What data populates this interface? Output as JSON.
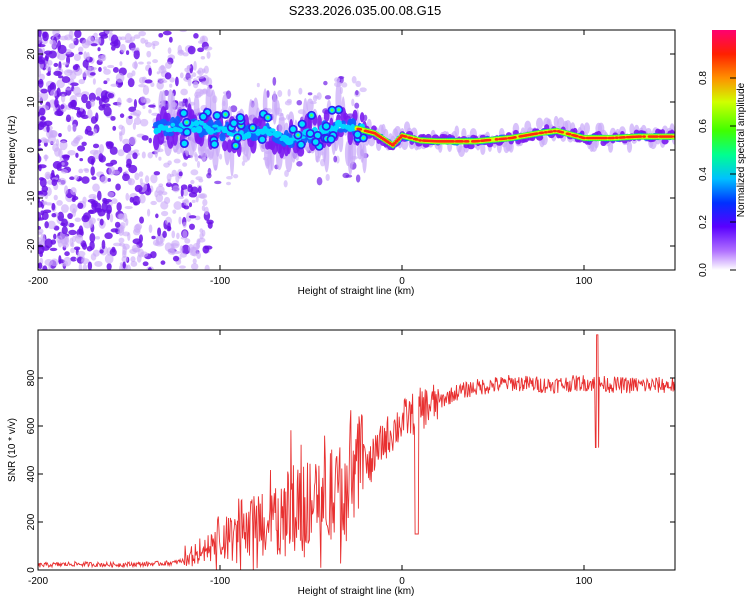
{
  "figure_title": "S233.2026.035.00.08.G15",
  "chart_data": [
    {
      "type": "heatmap",
      "xlabel": "Height of straight line (km)",
      "ylabel": "Frequency (Hz)",
      "xlim": [
        -200,
        150
      ],
      "ylim": [
        -25,
        25
      ],
      "xticks": [
        -200,
        -100,
        0,
        100
      ],
      "yticks": [
        -20,
        -10,
        0,
        10,
        20
      ],
      "colorbar": {
        "label": "Normalized spectral amplitude",
        "range": [
          0,
          1
        ],
        "ticks": [
          0.0,
          0.2,
          0.4,
          0.6,
          0.8
        ]
      },
      "ridge": {
        "x": [
          -130,
          -110,
          -90,
          -75,
          -60,
          -45,
          -35,
          -25,
          -15,
          -5,
          0,
          10,
          20,
          40,
          60,
          75,
          85,
          100,
          115,
          130,
          150
        ],
        "freq": [
          4.5,
          5.0,
          3.0,
          4.0,
          2.0,
          4.0,
          5.0,
          4.5,
          3.5,
          1.0,
          3.0,
          2.0,
          1.8,
          1.8,
          2.5,
          3.5,
          4.0,
          2.5,
          2.5,
          2.8,
          2.8
        ]
      }
    },
    {
      "type": "line",
      "xlabel": "Height of straight line (km)",
      "ylabel": "SNR (10 * v/v)",
      "xlim": [
        -200,
        150
      ],
      "ylim": [
        0,
        1000
      ],
      "xticks": [
        -200,
        -100,
        0,
        100
      ],
      "yticks": [
        0,
        200,
        400,
        600,
        800
      ],
      "series": [
        {
          "name": "SNR",
          "color": "#e83030",
          "x": [
            -200,
            -180,
            -160,
            -140,
            -125,
            -115,
            -100,
            -90,
            -80,
            -70,
            -60,
            -50,
            -40,
            -30,
            -20,
            -10,
            0,
            10,
            20,
            30,
            40,
            50,
            60,
            80,
            100,
            120,
            150
          ],
          "values": [
            20,
            25,
            22,
            25,
            30,
            50,
            120,
            160,
            190,
            220,
            250,
            270,
            300,
            330,
            400,
            540,
            620,
            670,
            700,
            740,
            760,
            770,
            780,
            770,
            780,
            770,
            770
          ]
        }
      ]
    }
  ]
}
